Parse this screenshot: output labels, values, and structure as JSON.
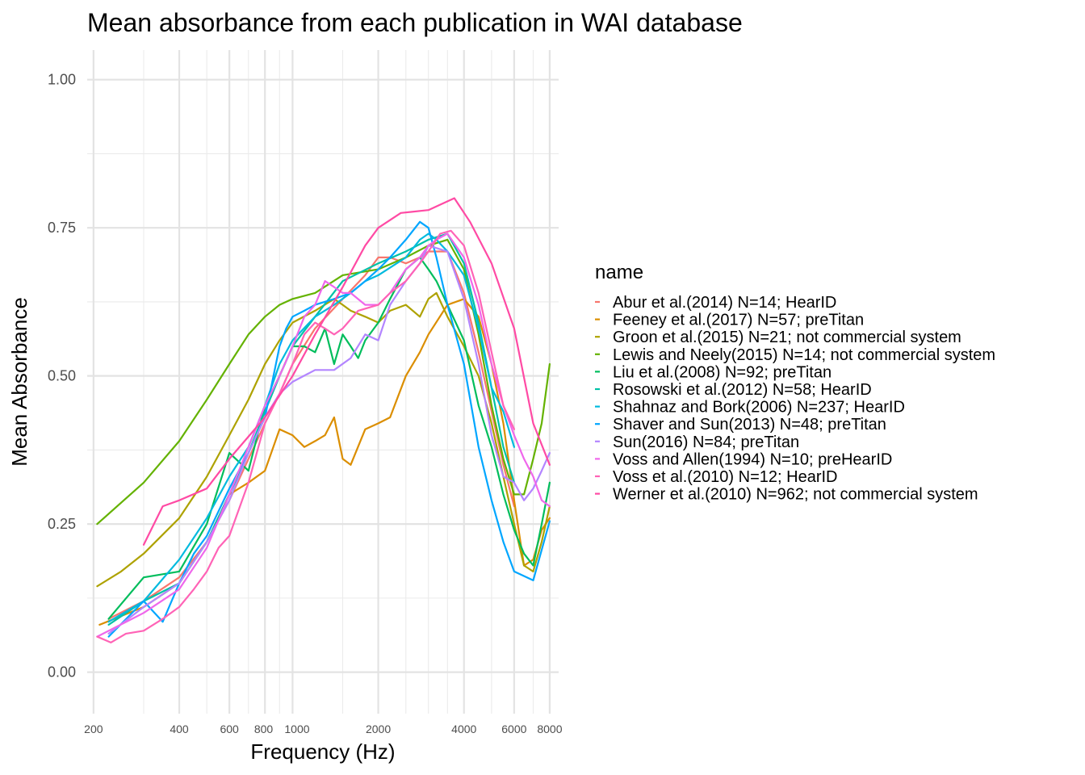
{
  "chart_data": {
    "type": "line",
    "title": "Mean absorbance from each publication in WAI database",
    "xlabel": "Frequency (Hz)",
    "ylabel": "Mean Absorbance",
    "xscale": "log",
    "xlim": [
      190,
      8600
    ],
    "ylim": [
      -0.07,
      1.05
    ],
    "x_ticks": [
      200,
      400,
      600,
      800,
      1000,
      2000,
      4000,
      6000,
      8000
    ],
    "x_tick_labels": [
      "200",
      "400",
      "600",
      "800",
      "1000",
      "2000",
      "4000",
      "6000",
      "8000"
    ],
    "y_ticks": [
      0,
      0.25,
      0.5,
      0.75,
      1.0
    ],
    "y_tick_labels": [
      "0.00",
      "0.25",
      "0.50",
      "0.75",
      "1.00"
    ],
    "grid": true,
    "legend_title": "name",
    "legend_position": "right",
    "series": [
      {
        "name": "Abur et al.(2014) N=14; HearID",
        "color": "#F8766D",
        "x": [
          226,
          300,
          400,
          500,
          600,
          700,
          800,
          900,
          1000,
          1200,
          1500,
          1800,
          2000,
          2200,
          2500,
          2800,
          3000,
          3500,
          4000,
          4500,
          5000,
          5500,
          6000
        ],
        "y": [
          0.09,
          0.12,
          0.16,
          0.22,
          0.29,
          0.36,
          0.42,
          0.47,
          0.52,
          0.58,
          0.63,
          0.67,
          0.7,
          0.7,
          0.69,
          0.7,
          0.71,
          0.71,
          0.64,
          0.54,
          0.44,
          0.35,
          0.28
        ]
      },
      {
        "name": "Feeney et al.(2017) N=57; preTitan",
        "color": "#DB8E00",
        "x": [
          210,
          300,
          400,
          500,
          600,
          700,
          800,
          900,
          1000,
          1100,
          1200,
          1300,
          1400,
          1500,
          1600,
          1800,
          2000,
          2200,
          2500,
          2800,
          3000,
          3500,
          4000,
          4500,
          5000,
          5500,
          6000,
          6500,
          7000,
          7500,
          8000
        ],
        "y": [
          0.08,
          0.11,
          0.15,
          0.22,
          0.3,
          0.32,
          0.34,
          0.41,
          0.4,
          0.38,
          0.39,
          0.4,
          0.43,
          0.36,
          0.35,
          0.41,
          0.42,
          0.43,
          0.5,
          0.54,
          0.57,
          0.62,
          0.63,
          0.6,
          0.52,
          0.42,
          0.29,
          0.18,
          0.19,
          0.24,
          0.26
        ]
      },
      {
        "name": "Groon et al.(2015) N=21; not commercial system",
        "color": "#AEA200",
        "x": [
          206,
          250,
          300,
          400,
          500,
          600,
          700,
          800,
          900,
          1000,
          1200,
          1400,
          1500,
          1600,
          1800,
          2000,
          2200,
          2500,
          2800,
          3000,
          3200,
          3500,
          4000,
          4500,
          5000,
          5500,
          6000,
          6500,
          7000,
          7500,
          8000
        ],
        "y": [
          0.145,
          0.17,
          0.2,
          0.26,
          0.33,
          0.4,
          0.46,
          0.52,
          0.56,
          0.59,
          0.61,
          0.63,
          0.62,
          0.61,
          0.6,
          0.59,
          0.61,
          0.62,
          0.6,
          0.63,
          0.64,
          0.6,
          0.55,
          0.5,
          0.42,
          0.33,
          0.25,
          0.18,
          0.17,
          0.22,
          0.28
        ]
      },
      {
        "name": "Lewis and Neely(2015) N=14; not commercial system",
        "color": "#64B200",
        "x": [
          206,
          300,
          400,
          500,
          600,
          700,
          800,
          900,
          1000,
          1200,
          1500,
          2000,
          2500,
          3000,
          3500,
          4000,
          4500,
          5000,
          5500,
          6000,
          6500,
          7000,
          7500,
          8000
        ],
        "y": [
          0.25,
          0.32,
          0.39,
          0.46,
          0.52,
          0.57,
          0.6,
          0.62,
          0.63,
          0.64,
          0.67,
          0.68,
          0.7,
          0.72,
          0.73,
          0.68,
          0.57,
          0.45,
          0.36,
          0.3,
          0.3,
          0.36,
          0.42,
          0.52
        ]
      },
      {
        "name": "Liu et al.(2008) N=92; preTitan",
        "color": "#00BD5C",
        "x": [
          226,
          300,
          400,
          500,
          600,
          700,
          800,
          900,
          1000,
          1100,
          1200,
          1300,
          1400,
          1500,
          1600,
          1700,
          1800,
          2000,
          2200,
          2500,
          2800,
          3000,
          3200,
          3500,
          4000,
          4500,
          5000,
          5500,
          6000,
          6500,
          7000,
          7500,
          8000
        ],
        "y": [
          0.09,
          0.16,
          0.17,
          0.25,
          0.37,
          0.34,
          0.45,
          0.5,
          0.55,
          0.55,
          0.54,
          0.58,
          0.52,
          0.57,
          0.55,
          0.53,
          0.56,
          0.59,
          0.63,
          0.68,
          0.7,
          0.68,
          0.66,
          0.62,
          0.56,
          0.45,
          0.38,
          0.3,
          0.24,
          0.2,
          0.18,
          0.25,
          0.32
        ]
      },
      {
        "name": "Rosowski et al.(2012) N=58; HearID",
        "color": "#00C1A7",
        "x": [
          226,
          300,
          400,
          500,
          600,
          700,
          800,
          900,
          1000,
          1200,
          1500,
          2000,
          2500,
          3000,
          3500,
          4000,
          4500,
          5000,
          5500,
          6000
        ],
        "y": [
          0.08,
          0.12,
          0.15,
          0.22,
          0.3,
          0.37,
          0.44,
          0.5,
          0.55,
          0.6,
          0.66,
          0.69,
          0.71,
          0.73,
          0.74,
          0.69,
          0.59,
          0.48,
          0.38,
          0.32
        ]
      },
      {
        "name": "Shahnaz and Bork(2006) N=237; HearID",
        "color": "#00BADE",
        "x": [
          226,
          300,
          400,
          500,
          600,
          700,
          800,
          900,
          1000,
          1200,
          1400,
          1600,
          1800,
          2000,
          2500,
          2800,
          3000,
          3200,
          3500,
          4000,
          4500,
          5000,
          5500,
          6000
        ],
        "y": [
          0.085,
          0.12,
          0.19,
          0.26,
          0.33,
          0.38,
          0.45,
          0.52,
          0.56,
          0.6,
          0.62,
          0.64,
          0.66,
          0.67,
          0.7,
          0.73,
          0.74,
          0.73,
          0.71,
          0.67,
          0.58,
          0.48,
          0.44,
          0.38
        ]
      },
      {
        "name": "Shaver and Sun(2013) N=48; preTitan",
        "color": "#00A6FF",
        "x": [
          226,
          300,
          350,
          400,
          450,
          500,
          600,
          700,
          800,
          900,
          950,
          1000,
          1100,
          1200,
          1400,
          1600,
          1800,
          2000,
          2200,
          2500,
          2800,
          3000,
          3200,
          3500,
          4000,
          4500,
          5000,
          5500,
          6000,
          7000,
          8000
        ],
        "y": [
          0.06,
          0.12,
          0.085,
          0.15,
          0.2,
          0.23,
          0.31,
          0.37,
          0.43,
          0.55,
          0.58,
          0.6,
          0.61,
          0.62,
          0.63,
          0.64,
          0.66,
          0.68,
          0.7,
          0.73,
          0.76,
          0.75,
          0.7,
          0.62,
          0.52,
          0.38,
          0.29,
          0.22,
          0.17,
          0.155,
          0.255
        ]
      },
      {
        "name": "Sun(2016) N=84; preTitan",
        "color": "#B385FF",
        "x": [
          226,
          300,
          400,
          500,
          600,
          700,
          800,
          900,
          1000,
          1200,
          1400,
          1600,
          1800,
          2000,
          2200,
          2500,
          2800,
          3000,
          3500,
          4000,
          4500,
          5000,
          5500,
          6000,
          6500,
          7000,
          7500,
          8000
        ],
        "y": [
          0.065,
          0.11,
          0.15,
          0.22,
          0.29,
          0.37,
          0.43,
          0.47,
          0.49,
          0.51,
          0.51,
          0.53,
          0.57,
          0.56,
          0.62,
          0.66,
          0.69,
          0.72,
          0.71,
          0.63,
          0.52,
          0.4,
          0.33,
          0.32,
          0.29,
          0.31,
          0.34,
          0.37
        ]
      },
      {
        "name": "Voss and Allen(1994) N=10; preHearID",
        "color": "#EF67EB",
        "x": [
          206,
          300,
          400,
          500,
          600,
          700,
          800,
          900,
          1000,
          1100,
          1200,
          1300,
          1400,
          1500,
          1600,
          1800,
          2000,
          2200,
          2500,
          2800,
          3000,
          3200,
          3500,
          4000,
          4500,
          5000,
          5500,
          6000,
          6500,
          7000,
          7500,
          8000
        ],
        "y": [
          0.06,
          0.1,
          0.14,
          0.21,
          0.3,
          0.38,
          0.45,
          0.5,
          0.55,
          0.6,
          0.62,
          0.66,
          0.65,
          0.64,
          0.64,
          0.62,
          0.62,
          0.64,
          0.68,
          0.7,
          0.72,
          0.73,
          0.74,
          0.7,
          0.62,
          0.52,
          0.45,
          0.4,
          0.36,
          0.33,
          0.29,
          0.28
        ]
      },
      {
        "name": "Voss et al.(2010) N=12; HearID",
        "color": "#FF63B6",
        "x": [
          206,
          230,
          260,
          300,
          350,
          400,
          450,
          500,
          550,
          600,
          700,
          800,
          900,
          1000,
          1100,
          1200,
          1300,
          1400,
          1500,
          1700,
          2000,
          2200,
          2500,
          2800,
          3000,
          3300,
          3600,
          4000,
          4500,
          5000,
          5500,
          6000
        ],
        "y": [
          0.06,
          0.05,
          0.065,
          0.07,
          0.09,
          0.11,
          0.14,
          0.17,
          0.21,
          0.23,
          0.32,
          0.42,
          0.47,
          0.52,
          0.57,
          0.59,
          0.58,
          0.57,
          0.58,
          0.61,
          0.62,
          0.64,
          0.66,
          0.69,
          0.71,
          0.74,
          0.745,
          0.72,
          0.64,
          0.54,
          0.45,
          0.41
        ]
      },
      {
        "name": "Werner et al.(2010) N=962; not commercial system",
        "color": "#FF4AA4",
        "x": [
          300,
          350,
          400,
          500,
          600,
          800,
          1000,
          1200,
          1500,
          1800,
          2000,
          2400,
          3000,
          3700,
          4200,
          5000,
          6000,
          7000,
          8000
        ],
        "y": [
          0.215,
          0.28,
          0.29,
          0.31,
          0.36,
          0.43,
          0.5,
          0.57,
          0.65,
          0.72,
          0.75,
          0.775,
          0.78,
          0.8,
          0.76,
          0.69,
          0.58,
          0.42,
          0.35
        ]
      }
    ]
  }
}
